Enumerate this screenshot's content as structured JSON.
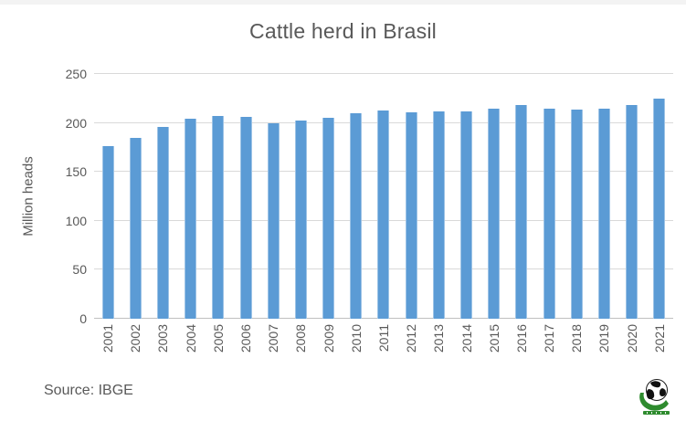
{
  "page": {
    "background": "#ffffff",
    "top_strip_color": "#f3f3f3"
  },
  "chart_data": {
    "type": "bar",
    "title": "Cattle herd in Brasil",
    "xlabel": "",
    "ylabel": "Million heads",
    "categories": [
      "2001",
      "2002",
      "2003",
      "2004",
      "2005",
      "2006",
      "2007",
      "2008",
      "2009",
      "2010",
      "2011",
      "2012",
      "2013",
      "2014",
      "2015",
      "2016",
      "2017",
      "2018",
      "2019",
      "2020",
      "2021"
    ],
    "values": [
      176,
      185,
      196,
      204,
      207,
      206,
      200,
      202,
      205,
      210,
      213,
      211,
      212,
      212,
      215,
      218,
      215,
      214,
      215,
      218,
      225
    ],
    "ylim": [
      0,
      250
    ],
    "yticks": [
      0,
      50,
      100,
      150,
      200,
      250
    ],
    "grid": true,
    "legend": false,
    "bar_color": "#5b9bd5",
    "bar_edge_color": "#9dc3e6",
    "gridline_color": "#d9d9d9",
    "axis_line_color": "#bfbfbf",
    "text_color": "#595959"
  },
  "footer": {
    "source": "Source: IBGE",
    "logo_icon": "world-globe-logo",
    "logo_accent_color": "#2e8b2e"
  }
}
